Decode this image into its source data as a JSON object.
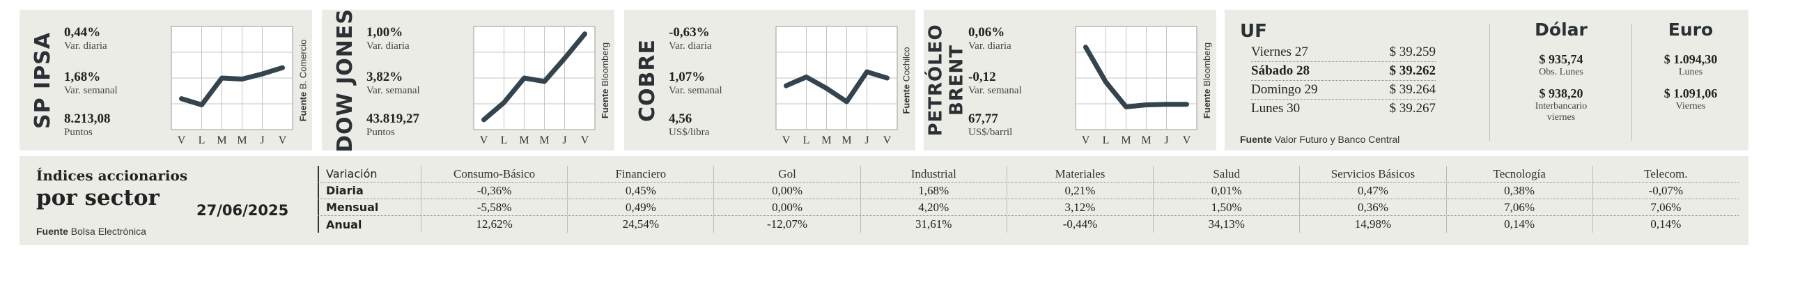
{
  "indices": [
    {
      "title": "SP IPSA",
      "stats": [
        {
          "value": "0,44%",
          "label": "Var. diaria"
        },
        {
          "value": "1,68%",
          "label": "Var. semanal"
        },
        {
          "value": "8.213,08",
          "label": "Puntos"
        }
      ],
      "source_bold": "Fuente",
      "source": "B. Comercio"
    },
    {
      "title": "DOW JONES",
      "stats": [
        {
          "value": "1,00%",
          "label": "Var. diaria"
        },
        {
          "value": "3,82%",
          "label": "Var. semanal"
        },
        {
          "value": "43.819,27",
          "label": "Puntos"
        }
      ],
      "source_bold": "Fuente",
      "source": "Bloomberg"
    },
    {
      "title": "COBRE",
      "stats": [
        {
          "value": "-0,63%",
          "label": "Var. diaria"
        },
        {
          "value": "1,07%",
          "label": "Var. semanal"
        },
        {
          "value": "4,56",
          "label": "US$/libra"
        }
      ],
      "source_bold": "Fuente",
      "source": "Cochilco"
    },
    {
      "title_line1": "PETRÓLEO",
      "title_line2": "BRENT",
      "stats": [
        {
          "value": "0,06%",
          "label": "Var. diaria"
        },
        {
          "value": "-0,12",
          "label": "Var. semanal"
        },
        {
          "value": "67,77",
          "label": "US$/barril"
        }
      ],
      "source_bold": "Fuente",
      "source": "Bloomberg"
    }
  ],
  "chart_data": [
    {
      "type": "line",
      "title": "SP IPSA",
      "categories": [
        "V",
        "L",
        "M",
        "M",
        "J",
        "V"
      ],
      "values": [
        0.6,
        0.48,
        1.0,
        0.98,
        1.08,
        1.2
      ],
      "ylim": [
        0,
        2.0
      ],
      "grid": true
    },
    {
      "type": "line",
      "title": "DOW JONES",
      "categories": [
        "V",
        "L",
        "M",
        "M",
        "J",
        "V"
      ],
      "values": [
        0.2,
        0.55,
        1.05,
        0.98,
        1.45,
        1.95
      ],
      "ylim": [
        0,
        2.1
      ],
      "grid": true
    },
    {
      "type": "line",
      "title": "COBRE",
      "categories": [
        "V",
        "L",
        "M",
        "M",
        "J",
        "V"
      ],
      "values": [
        0.85,
        1.02,
        0.8,
        0.54,
        1.12,
        1.0
      ],
      "ylim": [
        0,
        2.0
      ],
      "grid": true
    },
    {
      "type": "line",
      "title": "PETRÓLEO BRENT",
      "categories": [
        "V",
        "L",
        "M",
        "M",
        "J",
        "V"
      ],
      "values": [
        1.6,
        0.92,
        0.44,
        0.48,
        0.49,
        0.49
      ],
      "ylim": [
        0,
        2.0
      ],
      "grid": true
    }
  ],
  "uf": {
    "title": "UF",
    "rows": [
      {
        "day": "Viernes 27",
        "value": "$ 39.259",
        "bold": false
      },
      {
        "day": "Sábado 28",
        "value": "$ 39.262",
        "bold": true
      },
      {
        "day": "Domingo 29",
        "value": "$ 39.264",
        "bold": false
      },
      {
        "day": "Lunes 30",
        "value": "$ 39.267",
        "bold": false
      }
    ],
    "source_bold": "Fuente",
    "source": "Valor Futuro y Banco Central"
  },
  "dolar": {
    "title": "Dólar",
    "v1": "$ 935,74",
    "l1": "Obs. Lunes",
    "v2": "$ 938,20",
    "l2a": "Interbancario",
    "l2b": "viernes"
  },
  "euro": {
    "title": "Euro",
    "v1": "$ 1.094,30",
    "l1": "Lunes",
    "v2": "$ 1.091,06",
    "l2": "Viernes"
  },
  "sector": {
    "title1": "Índices accionarios",
    "title2": "por sector",
    "date": "27/06/2025",
    "source_bold": "Fuente",
    "source": "Bolsa Electrónica",
    "header": "Variación",
    "columns": [
      "Consumo-Básico",
      "Financiero",
      "Gol",
      "Industrial",
      "Materiales",
      "Salud",
      "Servicios Básicos",
      "Tecnología",
      "Telecom."
    ],
    "rows": [
      {
        "label": "Diaria",
        "values": [
          "-0,36%",
          "0,45%",
          "0,00%",
          "1,68%",
          "0,21%",
          "0,01%",
          "0,47%",
          "0,38%",
          "-0,07%"
        ]
      },
      {
        "label": "Mensual",
        "values": [
          "-5,58%",
          "0,49%",
          "0,00%",
          "4,20%",
          "3,12%",
          "1,50%",
          "0,36%",
          "7,06%",
          "7,06%"
        ]
      },
      {
        "label": "Anual",
        "values": [
          "12,62%",
          "24,54%",
          "-12,07%",
          "31,61%",
          "-0,44%",
          "34,13%",
          "14,98%",
          "0,14%",
          "0,14%"
        ]
      }
    ]
  }
}
